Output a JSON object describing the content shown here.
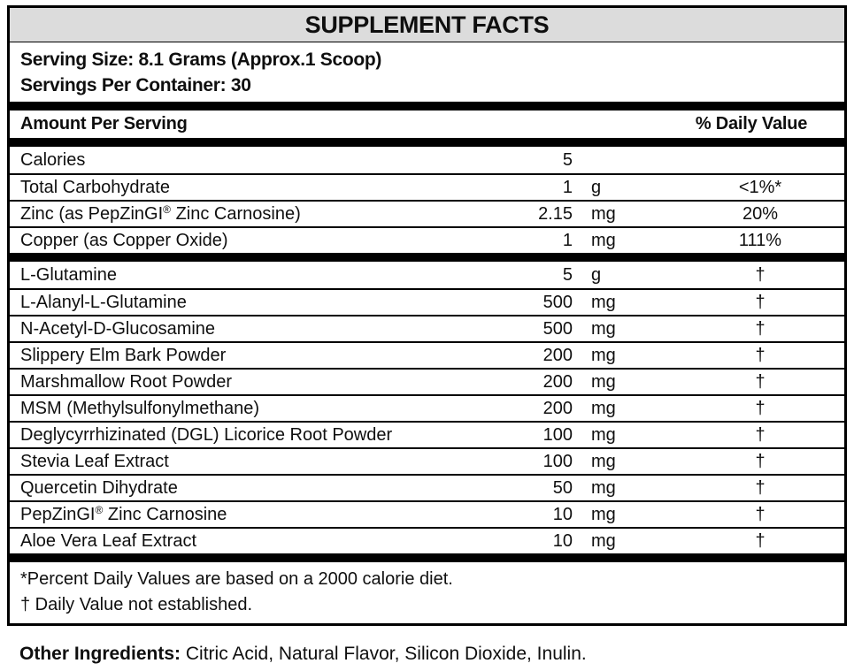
{
  "title": "SUPPLEMENT FACTS",
  "serving": {
    "size_line": "Serving Size: 8.1 Grams (Approx.1 Scoop)",
    "per_container_line": "Servings Per Container: 30"
  },
  "header": {
    "amount_label": "Amount Per Serving",
    "daily_value_label": "% Daily Value"
  },
  "table": {
    "nutrient_rows": [
      {
        "name": "Calories",
        "amount": "5",
        "unit": "",
        "dv": ""
      },
      {
        "name": "Total Carbohydrate",
        "amount": "1",
        "unit": "g",
        "dv": "<1%*"
      },
      {
        "name": "Zinc (as PepZinGI® Zinc Carnosine)",
        "amount": "2.15",
        "unit": "mg",
        "dv": "20%"
      },
      {
        "name": "Copper (as Copper Oxide)",
        "amount": "1",
        "unit": "mg",
        "dv": "111%"
      }
    ],
    "herbal_rows": [
      {
        "name": "L-Glutamine",
        "amount": "5",
        "unit": "g",
        "dv": "†"
      },
      {
        "name": "L-Alanyl-L-Glutamine",
        "amount": "500",
        "unit": "mg",
        "dv": "†"
      },
      {
        "name": "N-Acetyl-D-Glucosamine",
        "amount": "500",
        "unit": "mg",
        "dv": "†"
      },
      {
        "name": "Slippery Elm Bark Powder",
        "amount": "200",
        "unit": "mg",
        "dv": "†"
      },
      {
        "name": "Marshmallow Root Powder",
        "amount": "200",
        "unit": "mg",
        "dv": "†"
      },
      {
        "name": "MSM (Methylsulfonylmethane)",
        "amount": "200",
        "unit": "mg",
        "dv": "†"
      },
      {
        "name": "Deglycyrrhizinated (DGL) Licorice Root Powder",
        "amount": "100",
        "unit": "mg",
        "dv": "†"
      },
      {
        "name": "Stevia Leaf Extract",
        "amount": "100",
        "unit": "mg",
        "dv": "†"
      },
      {
        "name": "Quercetin Dihydrate",
        "amount": "50",
        "unit": "mg",
        "dv": "†"
      },
      {
        "name": "PepZinGI® Zinc Carnosine",
        "amount": "10",
        "unit": "mg",
        "dv": "†"
      },
      {
        "name": "Aloe Vera Leaf Extract",
        "amount": "10",
        "unit": "mg",
        "dv": "†"
      }
    ]
  },
  "footnotes": [
    "*Percent Daily Values are based on a 2000 calorie diet.",
    "† Daily Value not established."
  ],
  "other_ingredients": {
    "label": "Other Ingredients:",
    "text": "Citric Acid, Natural Flavor, Silicon Dioxide, Inulin."
  },
  "colors": {
    "title_bar_bg": "#dcdcdc",
    "border": "#000000"
  }
}
